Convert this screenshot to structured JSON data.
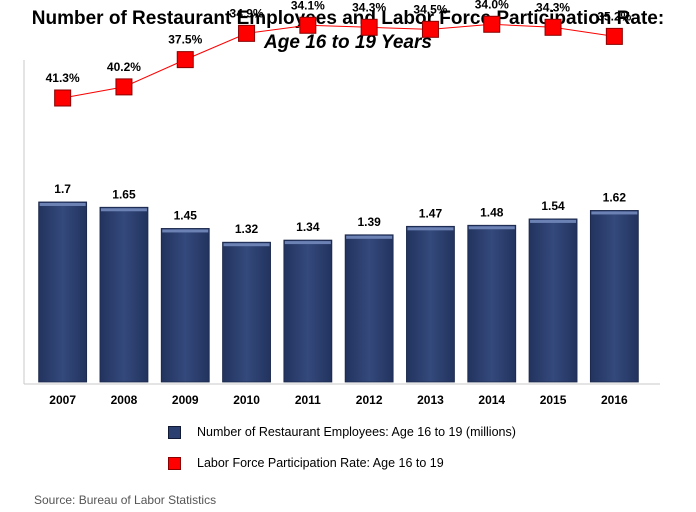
{
  "title": "Number of Restaurant Employees and Labor Force Participation Rate:",
  "subtitle": "Age 16 to 19 Years",
  "source": "Source: Bureau of Labor Statistics",
  "colors": {
    "bar": "#2b3f70",
    "bar_top": "#6d82b4",
    "marker": "#ff0000",
    "line": "#ff0000"
  },
  "chart_data": {
    "type": "bar",
    "categories": [
      "2007",
      "2008",
      "2009",
      "2010",
      "2011",
      "2012",
      "2013",
      "2014",
      "2015",
      "2016"
    ],
    "series": [
      {
        "name": "Number of Restaurant Employees: Age 16 to 19 (millions)",
        "type": "bar",
        "values": [
          1.7,
          1.65,
          1.45,
          1.32,
          1.34,
          1.39,
          1.47,
          1.48,
          1.54,
          1.62
        ],
        "labels": [
          "1.7",
          "1.65",
          "1.45",
          "1.32",
          "1.34",
          "1.39",
          "1.47",
          "1.48",
          "1.54",
          "1.62"
        ]
      },
      {
        "name": "Labor Force Participation Rate: Age 16 to 19",
        "type": "line",
        "values": [
          41.3,
          40.2,
          37.5,
          34.9,
          34.1,
          34.3,
          34.5,
          34.0,
          34.3,
          35.2
        ],
        "labels": [
          "41.3%",
          "40.2%",
          "37.5%",
          "34.9%",
          "34.1%",
          "34.3%",
          "34.5%",
          "34.0%",
          "34.3%",
          "35.2%"
        ]
      }
    ],
    "legend_position": "bottom",
    "grid": false
  }
}
